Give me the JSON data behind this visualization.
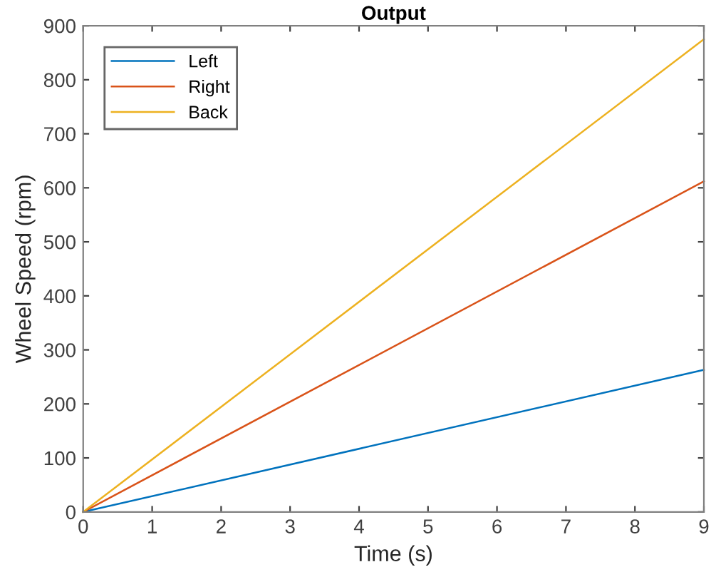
{
  "chart_data": {
    "type": "line",
    "title": "Output",
    "xlabel": "Time (s)",
    "ylabel": "Wheel Speed (rpm)",
    "xlim": [
      0,
      9
    ],
    "xticks": [
      0,
      1,
      2,
      3,
      4,
      5,
      6,
      7,
      8,
      9
    ],
    "ylim": [
      0,
      900
    ],
    "yticks": [
      0,
      100,
      200,
      300,
      400,
      500,
      600,
      700,
      800,
      900
    ],
    "x": [
      0,
      9
    ],
    "legend": "top left",
    "grid": false,
    "marker": "none",
    "line_style": "solid",
    "series": [
      {
        "name": "Left",
        "color": "#0072bd",
        "values": [
          0,
          263
        ]
      },
      {
        "name": "Right",
        "color": "#d95319",
        "values": [
          0,
          612
        ]
      },
      {
        "name": "Back",
        "color": "#edb120",
        "values": [
          0,
          875
        ]
      }
    ]
  }
}
